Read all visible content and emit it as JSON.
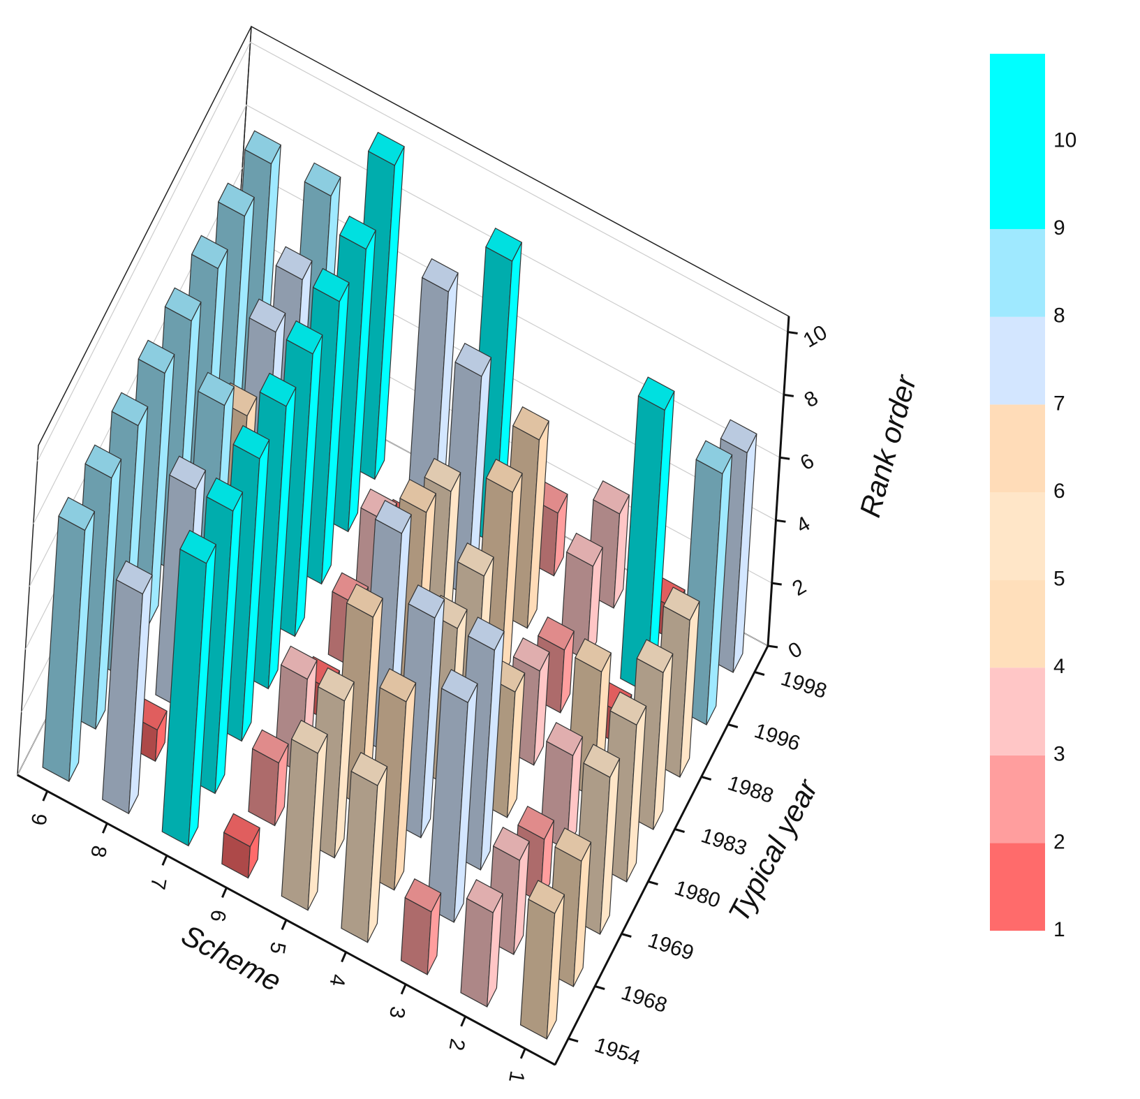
{
  "chart_data": {
    "type": "bar3d",
    "xlabel": "Scheme",
    "ylabel": "Typical year",
    "zlabel": "Rank order",
    "categories": [
      "9",
      "8",
      "7",
      "6",
      "5",
      "4",
      "3",
      "2",
      "1"
    ],
    "years": [
      "1954",
      "1968",
      "1969",
      "1980",
      "1983",
      "1988",
      "1996",
      "1998"
    ],
    "values": [
      [
        8,
        7,
        9,
        1,
        5,
        5,
        2,
        3,
        4
      ],
      [
        8,
        1,
        9,
        2,
        5,
        6,
        7,
        3,
        4
      ],
      [
        8,
        7,
        9,
        3,
        6,
        7,
        7,
        2,
        5
      ],
      [
        8,
        8,
        9,
        1,
        7,
        5,
        4,
        3,
        5
      ],
      [
        8,
        6,
        9,
        2,
        6,
        5,
        3,
        4,
        5
      ],
      [
        8,
        7,
        9,
        3,
        5,
        6,
        2,
        1,
        5
      ],
      [
        8,
        7,
        9,
        1,
        7,
        6,
        3,
        9,
        8
      ],
      [
        8,
        8,
        10,
        7,
        9,
        2,
        3,
        1,
        7
      ]
    ],
    "zlim": [
      0,
      10.5
    ],
    "zticks": [
      0,
      2,
      4,
      6,
      8,
      10
    ],
    "grid": true,
    "colorbar": {
      "clim": [
        1,
        11
      ],
      "ticks": [
        1,
        2,
        3,
        4,
        5,
        6,
        7,
        8,
        9,
        10
      ],
      "colors": [
        "#ff6b6b",
        "#ff9e9e",
        "#ffc6c6",
        "#ffdfbb",
        "#ffe6c8",
        "#ffdcb8",
        "#d3e6ff",
        "#9fe9ff",
        "#00ffff"
      ]
    }
  }
}
